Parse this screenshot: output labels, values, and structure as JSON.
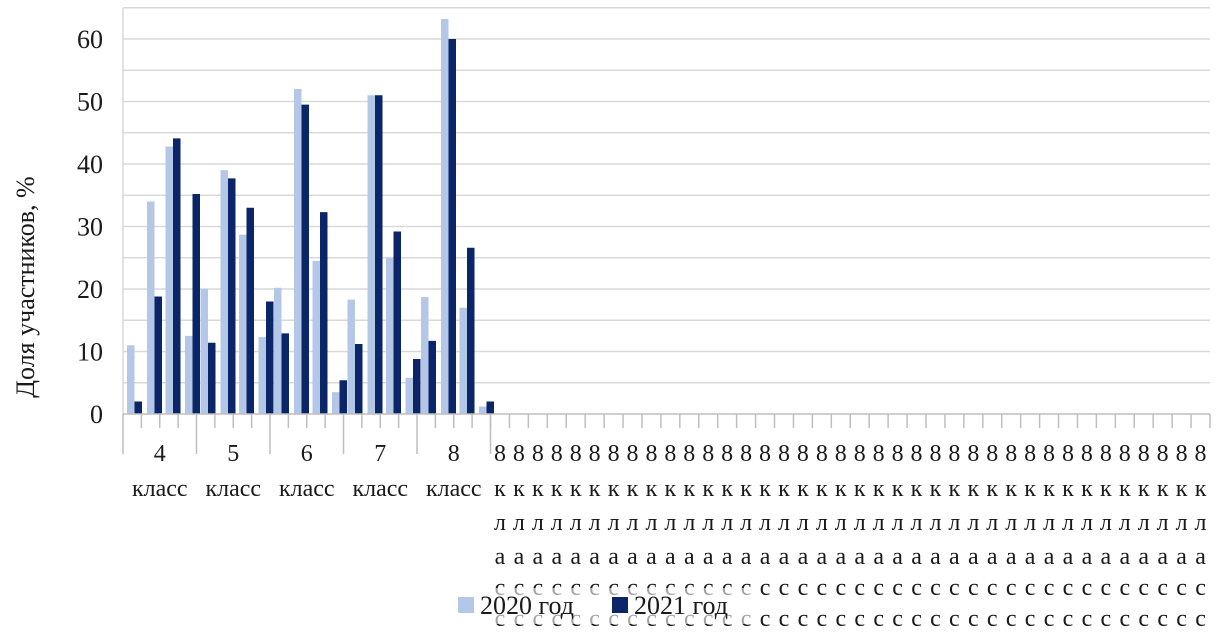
{
  "chart_data": {
    "type": "bar",
    "title": "",
    "xlabel": "",
    "ylabel": "Доля участников, %",
    "ylim": [
      0,
      65
    ],
    "yticks": [
      0,
      10,
      20,
      30,
      40,
      50,
      60
    ],
    "grid": true,
    "legend": "bottom",
    "categories": [
      {
        "line1": "4",
        "line2": "класс"
      },
      {
        "line1": "5",
        "line2": "класс"
      },
      {
        "line1": "6",
        "line2": "класс"
      },
      {
        "line1": "7",
        "line2": "класс"
      },
      {
        "line1": "8",
        "line2": "класс"
      }
    ],
    "empty_category_count": 38,
    "empty_category_label": "8 класс",
    "series": [
      {
        "name": "2020 год",
        "color": "#b4c7e7",
        "values": [
          [
            11,
            34,
            42.8,
            12.5
          ],
          [
            20,
            39,
            28.7,
            12.3
          ],
          [
            20.2,
            52,
            24.5,
            3.5
          ],
          [
            18.3,
            51,
            25,
            5.8
          ],
          [
            18.7,
            63.2,
            17,
            1.2
          ]
        ]
      },
      {
        "name": "2021 год",
        "color": "#0b2569",
        "values": [
          [
            2,
            18.8,
            44.1,
            35.2
          ],
          [
            11.4,
            37.7,
            33,
            18
          ],
          [
            12.9,
            49.5,
            32.3,
            5.4
          ],
          [
            11.2,
            51,
            29.2,
            8.8
          ],
          [
            11.7,
            60,
            26.6,
            2
          ]
        ]
      }
    ]
  }
}
